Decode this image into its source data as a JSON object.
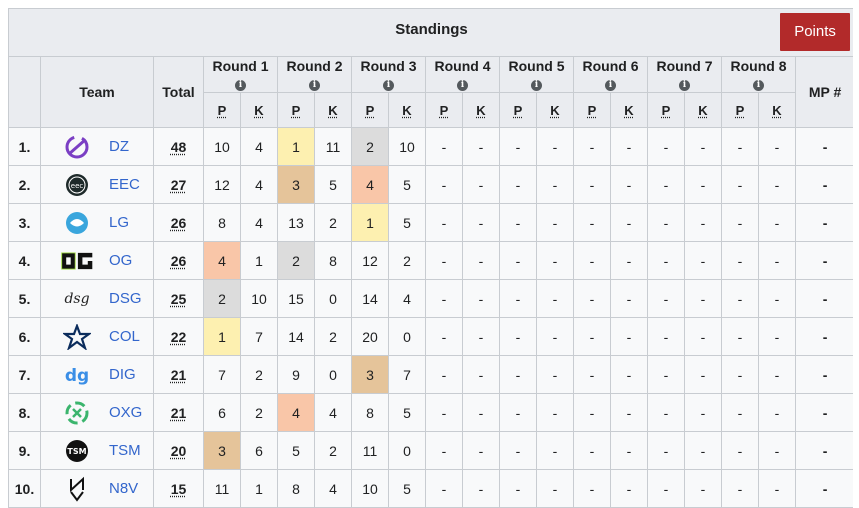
{
  "header": {
    "title": "Standings",
    "points_button": "Points"
  },
  "columns": {
    "team": "Team",
    "total": "Total",
    "rounds": [
      "Round 1",
      "Round 2",
      "Round 3",
      "Round 4",
      "Round 5",
      "Round 6",
      "Round 7",
      "Round 8"
    ],
    "p": "P",
    "k": "K",
    "mp": "MP #",
    "info_glyph": "i"
  },
  "colors": {
    "gold": "#fdf0b0",
    "silver": "#dcdcdc",
    "bronze": "#e5c49a",
    "orange": "#f9c6a8",
    "link": "#3366cc",
    "button": "#b22a2a"
  },
  "rows": [
    {
      "rank": "1.",
      "team": "DZ",
      "logo": "dz-logo-icon",
      "total": "48",
      "mp": "-",
      "rounds": [
        [
          "10",
          "4"
        ],
        [
          "1",
          "11"
        ],
        [
          "2",
          "10"
        ],
        [
          "-",
          "-"
        ],
        [
          "-",
          "-"
        ],
        [
          "-",
          "-"
        ],
        [
          "-",
          "-"
        ],
        [
          "-",
          "-"
        ]
      ],
      "highlights": {
        "2": "gold",
        "4": "silver"
      }
    },
    {
      "rank": "2.",
      "team": "EEC",
      "logo": "eec-logo-icon",
      "total": "27",
      "mp": "-",
      "rounds": [
        [
          "12",
          "4"
        ],
        [
          "3",
          "5"
        ],
        [
          "4",
          "5"
        ],
        [
          "-",
          "-"
        ],
        [
          "-",
          "-"
        ],
        [
          "-",
          "-"
        ],
        [
          "-",
          "-"
        ],
        [
          "-",
          "-"
        ]
      ],
      "highlights": {
        "2": "bronze",
        "4": "orange"
      }
    },
    {
      "rank": "3.",
      "team": "LG",
      "logo": "lg-logo-icon",
      "total": "26",
      "mp": "-",
      "rounds": [
        [
          "8",
          "4"
        ],
        [
          "13",
          "2"
        ],
        [
          "1",
          "5"
        ],
        [
          "-",
          "-"
        ],
        [
          "-",
          "-"
        ],
        [
          "-",
          "-"
        ],
        [
          "-",
          "-"
        ],
        [
          "-",
          "-"
        ]
      ],
      "highlights": {
        "4": "gold"
      }
    },
    {
      "rank": "4.",
      "team": "OG",
      "logo": "og-logo-icon",
      "total": "26",
      "mp": "-",
      "rounds": [
        [
          "4",
          "1"
        ],
        [
          "2",
          "8"
        ],
        [
          "12",
          "2"
        ],
        [
          "-",
          "-"
        ],
        [
          "-",
          "-"
        ],
        [
          "-",
          "-"
        ],
        [
          "-",
          "-"
        ],
        [
          "-",
          "-"
        ]
      ],
      "highlights": {
        "0": "orange",
        "2": "silver"
      }
    },
    {
      "rank": "5.",
      "team": "DSG",
      "logo": "dsg-logo-icon",
      "total": "25",
      "mp": "-",
      "rounds": [
        [
          "2",
          "10"
        ],
        [
          "15",
          "0"
        ],
        [
          "14",
          "4"
        ],
        [
          "-",
          "-"
        ],
        [
          "-",
          "-"
        ],
        [
          "-",
          "-"
        ],
        [
          "-",
          "-"
        ],
        [
          "-",
          "-"
        ]
      ],
      "highlights": {
        "0": "silver"
      }
    },
    {
      "rank": "6.",
      "team": "COL",
      "logo": "col-logo-icon",
      "total": "22",
      "mp": "-",
      "rounds": [
        [
          "1",
          "7"
        ],
        [
          "14",
          "2"
        ],
        [
          "20",
          "0"
        ],
        [
          "-",
          "-"
        ],
        [
          "-",
          "-"
        ],
        [
          "-",
          "-"
        ],
        [
          "-",
          "-"
        ],
        [
          "-",
          "-"
        ]
      ],
      "highlights": {
        "0": "gold"
      }
    },
    {
      "rank": "7.",
      "team": "DIG",
      "logo": "dig-logo-icon",
      "total": "21",
      "mp": "-",
      "rounds": [
        [
          "7",
          "2"
        ],
        [
          "9",
          "0"
        ],
        [
          "3",
          "7"
        ],
        [
          "-",
          "-"
        ],
        [
          "-",
          "-"
        ],
        [
          "-",
          "-"
        ],
        [
          "-",
          "-"
        ],
        [
          "-",
          "-"
        ]
      ],
      "highlights": {
        "4": "bronze"
      }
    },
    {
      "rank": "8.",
      "team": "OXG",
      "logo": "oxg-logo-icon",
      "total": "21",
      "mp": "-",
      "rounds": [
        [
          "6",
          "2"
        ],
        [
          "4",
          "4"
        ],
        [
          "8",
          "5"
        ],
        [
          "-",
          "-"
        ],
        [
          "-",
          "-"
        ],
        [
          "-",
          "-"
        ],
        [
          "-",
          "-"
        ],
        [
          "-",
          "-"
        ]
      ],
      "highlights": {
        "2": "orange"
      }
    },
    {
      "rank": "9.",
      "team": "TSM",
      "logo": "tsm-logo-icon",
      "total": "20",
      "mp": "-",
      "rounds": [
        [
          "3",
          "6"
        ],
        [
          "5",
          "2"
        ],
        [
          "11",
          "0"
        ],
        [
          "-",
          "-"
        ],
        [
          "-",
          "-"
        ],
        [
          "-",
          "-"
        ],
        [
          "-",
          "-"
        ],
        [
          "-",
          "-"
        ]
      ],
      "highlights": {
        "0": "bronze"
      }
    },
    {
      "rank": "10.",
      "team": "N8V",
      "logo": "n8v-logo-icon",
      "total": "15",
      "mp": "-",
      "rounds": [
        [
          "11",
          "1"
        ],
        [
          "8",
          "4"
        ],
        [
          "10",
          "5"
        ],
        [
          "-",
          "-"
        ],
        [
          "-",
          "-"
        ],
        [
          "-",
          "-"
        ],
        [
          "-",
          "-"
        ],
        [
          "-",
          "-"
        ]
      ],
      "highlights": {}
    }
  ]
}
